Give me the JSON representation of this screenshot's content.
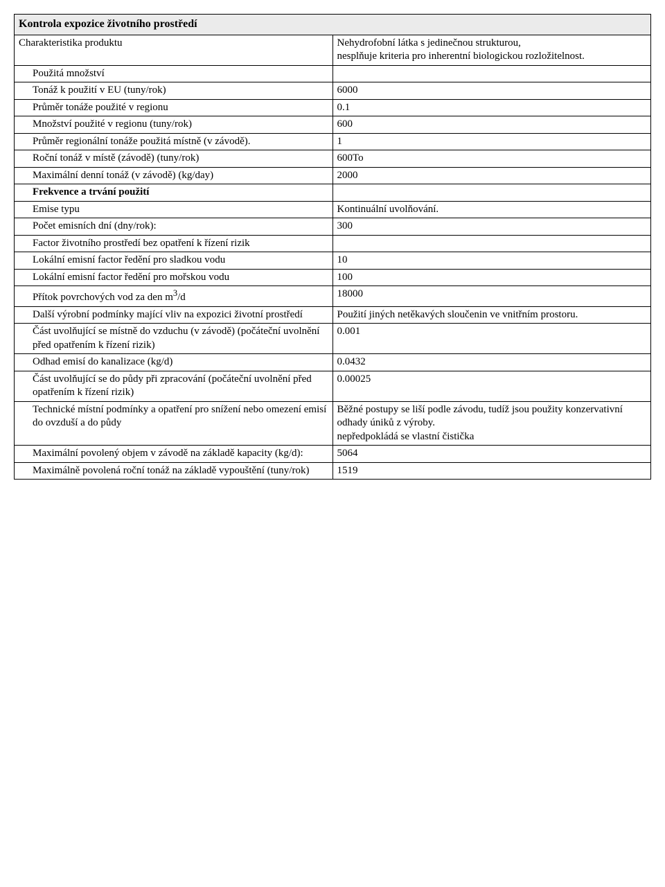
{
  "header": "Kontrola expozice životního prostředí",
  "rows": [
    {
      "label": "Charakteristika produktu",
      "value": "Nehydrofobní látka s jedinečnou strukturou,\nnesplňuje kriteria pro inherentní biologickou rozložitelnost.",
      "indent": false
    },
    {
      "label": "Použitá množství",
      "value": "",
      "indent": true
    },
    {
      "label": "Tonáž k použití v EU (tuny/rok)",
      "value": "6000",
      "indent": true
    },
    {
      "label": "Průměr tonáže  použité v regionu",
      "value": "0.1",
      "indent": true
    },
    {
      "label": "Množství použité v regionu (tuny/rok)",
      "value": "600",
      "indent": true
    },
    {
      "label": "Průměr regionální tonáže použitá místně (v závodě).",
      "value": "1",
      "indent": true
    },
    {
      "label": "Roční tonáž v místě (závodě)  (tuny/rok)",
      "value": "600To",
      "indent": true
    },
    {
      "label": "Maximální denní tonáž (v závodě)  (kg/day)",
      "value": "2000",
      "indent": true
    },
    {
      "label": "Frekvence a trvání použití",
      "value": "",
      "indent": true,
      "bold": true
    },
    {
      "label": "Emise typu",
      "value": "Kontinuální uvolňování.",
      "indent": true
    },
    {
      "label": "Počet emisních dní (dny/rok):",
      "value": "300",
      "indent": true
    },
    {
      "label": "Factor životního prostředí bez opatření k řízení rizik",
      "value": "",
      "indent": true
    },
    {
      "label": "Lokální emisní factor ředění pro sladkou vodu",
      "value": "10",
      "indent": true
    },
    {
      "label": "Lokální emisní factor ředění pro mořskou vodu",
      "value": "100",
      "indent": true
    },
    {
      "labelHtml": "Přítok povrchových vod za den m<sup>3</sup>/d",
      "value": "18000",
      "indent": true
    },
    {
      "label": "Další výrobní podmínky mající vliv na expozici životní prostředí",
      "value": "Použití jiných netěkavých sloučenin ve vnitřním prostoru.",
      "indent": true
    },
    {
      "label": "Část uvolňující se místně do vzduchu (v závodě) (počáteční uvolnění před opatřením k řízení rizik)",
      "value": "0.001",
      "indent": true
    },
    {
      "label": "Odhad emisí do kanalizace (kg/d)",
      "value": "0.0432",
      "indent": true
    },
    {
      "label": "Část uvolňující se do půdy při zpracování (počáteční uvolnění před opatřením k řízení rizik)",
      "value": "0.00025",
      "indent": true
    },
    {
      "label": "Technické místní podmínky a opatření pro snížení nebo omezení emisí do ovzduší a do půdy",
      "value": "Běžné postupy se liší podle závodu, tudíž jsou použity konzervativní odhady úniků z výroby.\nnepředpokládá se vlastní čistička",
      "indent": true
    },
    {
      "label": "Maximální povolený objem v závodě na základě kapacity (kg/d):",
      "value": "5064",
      "indent": true
    },
    {
      "label": "Maximálně povolená roční tonáž na základě vypouštění (tuny/rok)",
      "value": "1519",
      "indent": true
    }
  ]
}
